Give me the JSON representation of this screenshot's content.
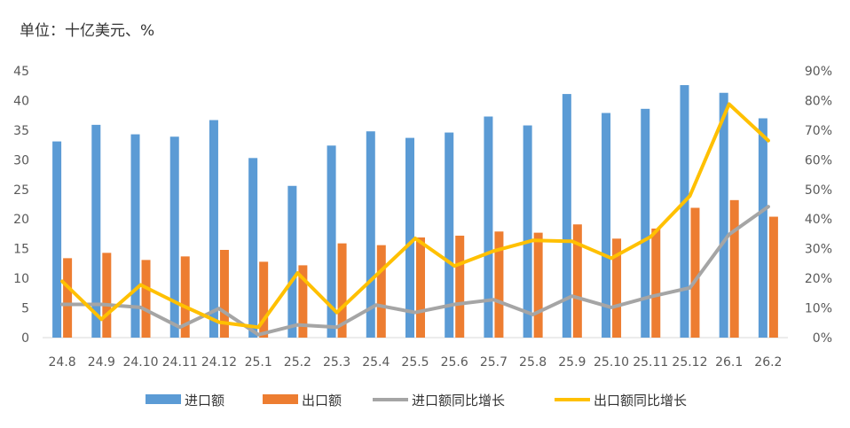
{
  "unit_label": "单位：十亿美元、%",
  "chart_data": {
    "type": "bar",
    "categories": [
      "24.8",
      "24.9",
      "24.10",
      "24.11",
      "24.12",
      "25.1",
      "25.2",
      "25.3",
      "25.4",
      "25.5",
      "25.6",
      "25.7",
      "25.8",
      "25.9",
      "25.10",
      "25.11",
      "25.12",
      "26.1",
      "26.2"
    ],
    "series": [
      {
        "name": "进口额",
        "kind": "bar",
        "axis": "left",
        "color": "#5b9bd5",
        "values": [
          33.1,
          35.9,
          34.3,
          33.9,
          36.7,
          30.3,
          25.6,
          32.4,
          34.8,
          33.7,
          34.6,
          37.3,
          35.8,
          41.1,
          37.9,
          38.6,
          42.6,
          41.3,
          37.0
        ]
      },
      {
        "name": "出口额",
        "kind": "bar",
        "axis": "left",
        "color": "#ed7d31",
        "values": [
          13.4,
          14.3,
          13.1,
          13.7,
          14.8,
          12.8,
          12.2,
          15.9,
          15.6,
          16.9,
          17.2,
          17.9,
          17.7,
          19.1,
          16.7,
          18.4,
          21.9,
          23.2,
          20.4
        ]
      },
      {
        "name": "进口额同比增长",
        "kind": "line",
        "axis": "right",
        "color": "#a5a5a5",
        "values": [
          11.2,
          11.2,
          10.2,
          3.5,
          9.8,
          1.0,
          4.3,
          3.5,
          11.0,
          8.5,
          11.2,
          12.8,
          7.8,
          14.0,
          10.2,
          13.8,
          16.8,
          34.8,
          44.2
        ]
      },
      {
        "name": "出口额同比增长",
        "kind": "line",
        "axis": "right",
        "color": "#ffc000",
        "values": [
          19.0,
          6.2,
          17.8,
          11.2,
          5.2,
          3.5,
          21.8,
          8.5,
          21.0,
          33.5,
          24.2,
          29.2,
          32.8,
          32.5,
          26.8,
          34.0,
          47.8,
          78.8,
          66.5
        ]
      }
    ],
    "y_left": {
      "min": 0,
      "max": 45,
      "ticks": [
        "0",
        "5",
        "10",
        "15",
        "20",
        "25",
        "30",
        "35",
        "40",
        "45"
      ]
    },
    "y_right": {
      "min": 0,
      "max": 90,
      "ticks": [
        "0%",
        "10%",
        "20%",
        "30%",
        "40%",
        "50%",
        "60%",
        "70%",
        "80%",
        "90%"
      ]
    },
    "legend_position": "bottom",
    "grid": false
  }
}
